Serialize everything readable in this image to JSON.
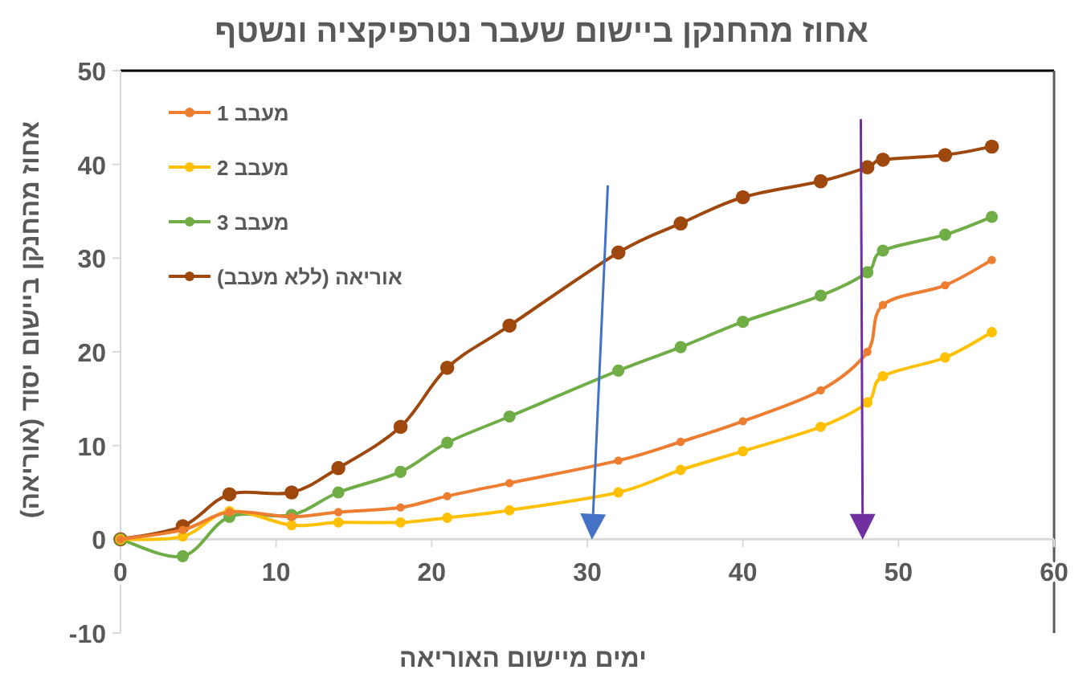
{
  "chart_data": {
    "type": "line",
    "title": "אחוז מהחנקן ביישום שעבר נטרפיקציה ונשטף",
    "xlabel": "ימים מיישום האוריאה",
    "ylabel": "אחוז מהחנקן ביישום יסוד (אוריאה)",
    "x": [
      0,
      4,
      7,
      11,
      14,
      18,
      21,
      25,
      32,
      36,
      40,
      45,
      48,
      49,
      53,
      56
    ],
    "series": [
      {
        "name": "מעבב 1",
        "color": "#ed7d31",
        "values": [
          0,
          1.0,
          2.9,
          2.4,
          2.9,
          3.4,
          4.6,
          6.0,
          8.4,
          10.4,
          12.6,
          15.9,
          20.0,
          25.0,
          27.1,
          29.8
        ]
      },
      {
        "name": "מעבב 2",
        "color": "#ffc000",
        "values": [
          0,
          0.3,
          3.0,
          1.5,
          1.8,
          1.8,
          2.3,
          3.1,
          5.0,
          7.4,
          9.4,
          12.0,
          14.6,
          17.4,
          19.4,
          22.1
        ]
      },
      {
        "name": "מעבב 3",
        "color": "#70ad47",
        "values": [
          0,
          -1.8,
          2.4,
          2.6,
          5.0,
          7.2,
          10.3,
          13.1,
          18.0,
          20.5,
          23.2,
          26.0,
          28.5,
          30.8,
          32.5,
          34.4
        ]
      },
      {
        "name": "אוריאה (ללא מעבב)",
        "color": "#9e480e",
        "values": [
          0,
          1.4,
          4.8,
          5.0,
          7.6,
          12.0,
          18.3,
          22.8,
          30.6,
          33.7,
          36.5,
          38.2,
          39.7,
          40.5,
          41.0,
          41.9
        ]
      }
    ],
    "xlim": [
      0,
      60
    ],
    "xticks": [
      0,
      10,
      20,
      30,
      40,
      50,
      60
    ],
    "ylim": [
      -10,
      50
    ],
    "yticks": [
      -10,
      0,
      10,
      20,
      30,
      40,
      50
    ],
    "marker": "circle",
    "legend": "top left",
    "grid": false
  }
}
